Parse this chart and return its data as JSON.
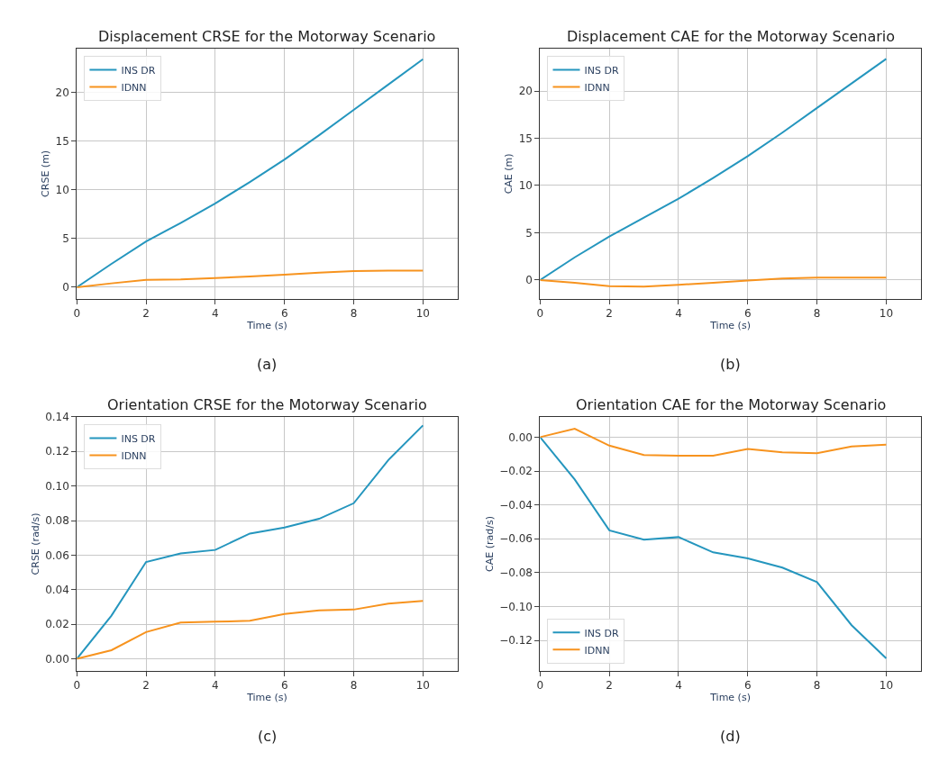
{
  "chart_data": [
    {
      "type": "line",
      "title": "Displacement CRSE for the Motorway Scenario",
      "xlabel": "Time (s)",
      "ylabel": "CRSE (m)",
      "annotations": [
        "(a)"
      ],
      "x": [
        0,
        1,
        2,
        3,
        4,
        5,
        6,
        7,
        8,
        9,
        10
      ],
      "xlim": [
        0,
        11
      ],
      "xticks": [
        0,
        2,
        4,
        6,
        8,
        10
      ],
      "ylim": [
        -1.2,
        24.5
      ],
      "yticks": [
        0,
        5,
        10,
        15,
        20
      ],
      "grid": true,
      "legend": "top left",
      "series": [
        {
          "name": "INS DR",
          "color": "#2596be",
          "values": [
            0,
            2.4,
            4.7,
            6.6,
            8.6,
            10.8,
            13.1,
            15.6,
            18.2,
            20.8,
            23.4
          ]
        },
        {
          "name": "IDNN",
          "color": "#f7931e",
          "values": [
            0,
            0.4,
            0.75,
            0.8,
            0.95,
            1.1,
            1.3,
            1.5,
            1.65,
            1.7,
            1.7
          ]
        }
      ]
    },
    {
      "type": "line",
      "title": "Displacement CAE for the Motorway Scenario",
      "xlabel": "Time (s)",
      "ylabel": "CAE (m)",
      "annotations": [
        "(b)"
      ],
      "x": [
        0,
        1,
        2,
        3,
        4,
        5,
        6,
        7,
        8,
        9,
        10
      ],
      "xlim": [
        0,
        11
      ],
      "xticks": [
        0,
        2,
        4,
        6,
        8,
        10
      ],
      "ylim": [
        -2,
        24.5
      ],
      "yticks": [
        0,
        5,
        10,
        15,
        20
      ],
      "grid": true,
      "legend": "top left",
      "series": [
        {
          "name": "INS DR",
          "color": "#2596be",
          "values": [
            0,
            2.4,
            4.6,
            6.6,
            8.6,
            10.8,
            13.1,
            15.6,
            18.2,
            20.8,
            23.4
          ]
        },
        {
          "name": "IDNN",
          "color": "#f7931e",
          "values": [
            0,
            -0.3,
            -0.65,
            -0.7,
            -0.5,
            -0.3,
            -0.05,
            0.15,
            0.25,
            0.25,
            0.25
          ]
        }
      ]
    },
    {
      "type": "line",
      "title": "Orientation CRSE for the Motorway Scenario",
      "xlabel": "Time (s)",
      "ylabel": "CRSE (rad/s)",
      "annotations": [
        "(c)"
      ],
      "x": [
        0,
        1,
        2,
        3,
        4,
        5,
        6,
        7,
        8,
        9,
        10
      ],
      "xlim": [
        0,
        11
      ],
      "xticks": [
        0,
        2,
        4,
        6,
        8,
        10
      ],
      "ylim": [
        -0.007,
        0.14
      ],
      "yticks": [
        {
          "value": 0,
          "label": "0.00"
        },
        {
          "value": 0.02,
          "label": "0.02"
        },
        {
          "value": 0.04,
          "label": "0.04"
        },
        {
          "value": 0.06,
          "label": "0.06"
        },
        {
          "value": 0.08,
          "label": "0.08"
        },
        {
          "value": 0.1,
          "label": "0.10"
        },
        {
          "value": 0.12,
          "label": "0.12"
        },
        {
          "value": 0.14,
          "label": "0.14"
        }
      ],
      "grid": true,
      "legend": "top left",
      "series": [
        {
          "name": "INS DR",
          "color": "#2596be",
          "values": [
            0,
            0.025,
            0.056,
            0.061,
            0.063,
            0.0725,
            0.076,
            0.081,
            0.09,
            0.115,
            0.135
          ]
        },
        {
          "name": "IDNN",
          "color": "#f7931e",
          "values": [
            0,
            0.005,
            0.0155,
            0.021,
            0.0215,
            0.022,
            0.026,
            0.028,
            0.0285,
            0.032,
            0.0335
          ]
        }
      ]
    },
    {
      "type": "line",
      "title": "Orientation CAE for the Motorway Scenario",
      "xlabel": "Time (s)",
      "ylabel": "CAE (rad/s)",
      "annotations": [
        "(d)"
      ],
      "x": [
        0,
        1,
        2,
        3,
        4,
        5,
        6,
        7,
        8,
        9,
        10
      ],
      "xlim": [
        0,
        11
      ],
      "xticks": [
        0,
        2,
        4,
        6,
        8,
        10
      ],
      "ylim": [
        -0.138,
        0.012
      ],
      "yticks": [
        {
          "value": 0,
          "label": "0.00"
        },
        {
          "value": -0.02,
          "label": "−0.02"
        },
        {
          "value": -0.04,
          "label": "−0.04"
        },
        {
          "value": -0.06,
          "label": "−0.06"
        },
        {
          "value": -0.08,
          "label": "−0.08"
        },
        {
          "value": -0.1,
          "label": "−0.10"
        },
        {
          "value": -0.12,
          "label": "−0.12"
        }
      ],
      "grid": true,
      "legend": "bottom left",
      "series": [
        {
          "name": "INS DR",
          "color": "#2596be",
          "values": [
            0,
            -0.025,
            -0.055,
            -0.0605,
            -0.059,
            -0.068,
            -0.0715,
            -0.077,
            -0.0855,
            -0.111,
            -0.1305
          ]
        },
        {
          "name": "IDNN",
          "color": "#f7931e",
          "values": [
            0,
            0.005,
            -0.005,
            -0.0105,
            -0.011,
            -0.011,
            -0.007,
            -0.009,
            -0.0095,
            -0.0055,
            -0.0045
          ]
        }
      ]
    }
  ]
}
